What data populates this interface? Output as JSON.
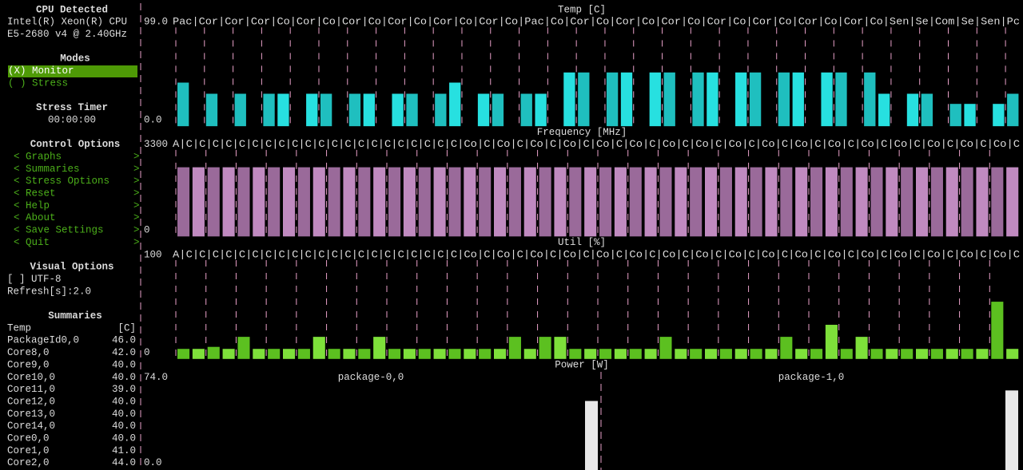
{
  "sidebar": {
    "cpu_title": "CPU Detected",
    "cpu_line1": "Intel(R) Xeon(R) CPU",
    "cpu_line2": "E5-2680 v4 @ 2.40GHz",
    "modes_title": "Modes",
    "modes": [
      "(X) Monitor",
      "( ) Stress"
    ],
    "timer_title": "Stress Timer",
    "timer": "00:00:00",
    "control_title": "Control Options",
    "controls": [
      "< Graphs            >",
      "< Summaries         >",
      "< Stress Options    >",
      "< Reset             >",
      "< Help              >",
      "< About             >",
      "< Save Settings     >",
      "< Quit              >"
    ],
    "visual_title": "Visual Options",
    "visual": [
      "[ ] UTF-8",
      "Refresh[s]:2.0"
    ],
    "summaries_title": "Summaries",
    "summary_header": [
      "Temp",
      "[C]"
    ],
    "summary_rows": [
      [
        "PackageId0,0",
        "46.0"
      ],
      [
        "Core8,0",
        "42.0"
      ],
      [
        "Core9,0",
        "40.0"
      ],
      [
        "Core10,0",
        "40.0"
      ],
      [
        "Core11,0",
        "39.0"
      ],
      [
        "Core12,0",
        "40.0"
      ],
      [
        "Core13,0",
        "40.0"
      ],
      [
        "Core14,0",
        "40.0"
      ],
      [
        "Core0,0",
        "40.0"
      ],
      [
        "Core1,0",
        "41.0"
      ],
      [
        "Core2,0",
        "44.0"
      ]
    ]
  },
  "graphs": [
    {
      "title": "Temp [C]",
      "max": "99.0",
      "min": "0.0",
      "ylim": [
        0,
        99
      ],
      "colors": [
        "#1fbfbf",
        "#27e0e0"
      ],
      "columns": "Pac|Cor|Cor|Cor|Co|Cor|Co|Cor|Co|Cor|Co|Cor|Co|Cor|Co|Pac|Co|Cor|Co|Cor|Co|Cor|Co|Cor|Co|Cor|Co|Cor|Co|Cor|Co|Sen|Se|Com|Se|Sen|Pc",
      "values": [
        43,
        0,
        32,
        0,
        32,
        0,
        32,
        32,
        0,
        32,
        32,
        0,
        32,
        32,
        0,
        32,
        32,
        0,
        32,
        43,
        0,
        32,
        32,
        0,
        32,
        32,
        0,
        53,
        53,
        0,
        53,
        53,
        0,
        53,
        53,
        0,
        53,
        53,
        0,
        53,
        53,
        0,
        53,
        53,
        0,
        53,
        53,
        0,
        53,
        32,
        0,
        32,
        32,
        0,
        22,
        22,
        0,
        22,
        32
      ]
    },
    {
      "title": "Frequency [MHz]",
      "max": "3300",
      "min": "0",
      "ylim": [
        0,
        3300
      ],
      "colors": [
        "#9a6a9a",
        "#c08ac0"
      ],
      "columns": "A|C|C|C|C|C|C|C|C|C|C|C|C|C|C|C|C|C|C|C|C|C|Co|C|Co|C|Co|C|Co|C|Co|C|Co|C|Co|C|Co|C|Co|C|Co|C|Co|C|Co|C|Co|C|Co|C|Co|C|Co|C|Co|C",
      "values": [
        2590,
        2590,
        2590,
        2590,
        2590,
        2590,
        2590,
        2590,
        2590,
        2590,
        2590,
        2590,
        2590,
        2590,
        2590,
        2590,
        2590,
        2590,
        2590,
        2590,
        2590,
        2590,
        2590,
        2590,
        2590,
        2590,
        2590,
        2590,
        2590,
        2590,
        2590,
        2590,
        2590,
        2590,
        2590,
        2590,
        2590,
        2590,
        2590,
        2590,
        2590,
        2590,
        2590,
        2590,
        2590,
        2590,
        2590,
        2590,
        2590,
        2590,
        2590,
        2590,
        2590,
        2590,
        2590,
        2590
      ]
    },
    {
      "title": "Util [%]",
      "max": "100",
      "min": "0",
      "ylim": [
        0,
        100
      ],
      "colors": [
        "#5cc020",
        "#7ee03a"
      ],
      "columns": "A|C|C|C|C|C|C|C|C|C|C|C|C|C|C|C|C|C|C|C|C|C|Co|C|Co|C|Co|C|Co|C|Co|C|Co|C|Co|C|Co|C|Co|C|Co|C|Co|C|Co|C|Co|C|Co|C|Co|C|Co|C|Co|C",
      "values": [
        10,
        10,
        12,
        10,
        22,
        10,
        10,
        10,
        10,
        22,
        10,
        10,
        10,
        22,
        10,
        10,
        10,
        10,
        10,
        10,
        10,
        10,
        22,
        10,
        22,
        22,
        10,
        10,
        10,
        10,
        10,
        10,
        22,
        10,
        10,
        10,
        10,
        10,
        10,
        10,
        22,
        10,
        10,
        34,
        10,
        22,
        10,
        10,
        10,
        10,
        10,
        10,
        10,
        10,
        57,
        10
      ]
    }
  ],
  "power": {
    "title": "Power [W]",
    "max": "74.0",
    "min": "0.0",
    "ylim": [
      0,
      74
    ],
    "packages": [
      {
        "name": "package-0,0",
        "value": 59
      },
      {
        "name": "package-1,0",
        "value": 68
      }
    ]
  }
}
